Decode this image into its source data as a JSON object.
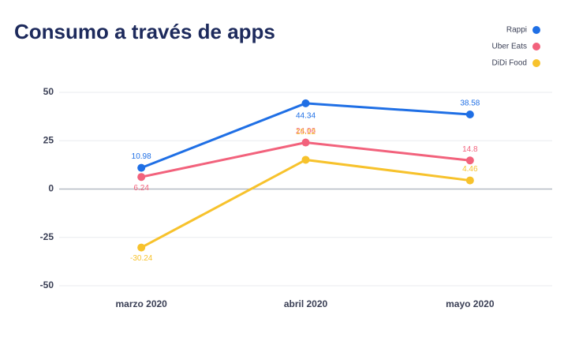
{
  "chart_data": {
    "type": "line",
    "title": "Consumo a través de apps",
    "categories": [
      "marzo 2020",
      "abril 2020",
      "mayo 2020"
    ],
    "series": [
      {
        "name": "Rappi",
        "color": "#1f6fe5",
        "values": [
          10.98,
          44.34,
          38.58
        ]
      },
      {
        "name": "Uber Eats",
        "color": "#f2627c",
        "values": [
          6.24,
          24.06,
          14.8
        ]
      },
      {
        "name": "DiDi Food",
        "color": "#f7c22c",
        "values": [
          -30.24,
          15.12,
          4.46
        ]
      }
    ],
    "ylim": [
      -50,
      50
    ],
    "yticks": [
      -50,
      -25,
      0,
      25,
      50
    ],
    "grid": true,
    "legend": "top-right"
  }
}
